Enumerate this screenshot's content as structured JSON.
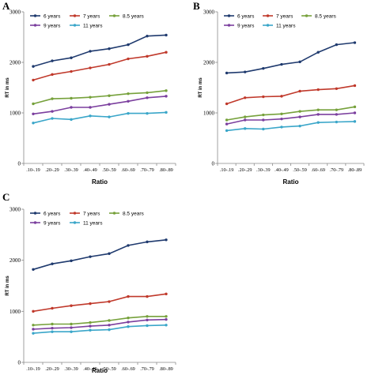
{
  "chart_data": [
    {
      "panel": "A",
      "type": "line",
      "categories": [
        ".10-.19",
        ".20-.29",
        ".30-.39",
        ".40-.49",
        ".50-.59",
        ".60-.69",
        ".70-.79",
        ".80-.89"
      ],
      "ytick_labels": [
        "0",
        "1000",
        "2000",
        "3000"
      ],
      "ylim": [
        0,
        3000
      ],
      "xlabel": "Ratio",
      "ylabel": "RT in ms",
      "legend": "top-left",
      "grid": false,
      "series": [
        {
          "name": "6 years",
          "color": "#1f3a6e",
          "values": [
            1920,
            2030,
            2090,
            2220,
            2270,
            2350,
            2520,
            2540
          ]
        },
        {
          "name": "7 years",
          "color": "#c0392b",
          "values": [
            1650,
            1760,
            1820,
            1890,
            1960,
            2070,
            2120,
            2200
          ]
        },
        {
          "name": "8.5 years",
          "color": "#76a13b",
          "values": [
            1180,
            1280,
            1290,
            1310,
            1340,
            1380,
            1400,
            1440
          ]
        },
        {
          "name": "9 years",
          "color": "#7b3f9e",
          "values": [
            980,
            1030,
            1110,
            1110,
            1170,
            1230,
            1300,
            1330
          ]
        },
        {
          "name": "11 years",
          "color": "#3aa6c9",
          "values": [
            800,
            890,
            870,
            940,
            920,
            990,
            990,
            1010
          ]
        }
      ]
    },
    {
      "panel": "B",
      "type": "line",
      "categories": [
        ".10-.19",
        ".20-.29",
        ".30-.39",
        ".40-.49",
        ".50-.59",
        ".60-.69",
        ".70-.79",
        ".80-.89"
      ],
      "ytick_labels": [
        "0",
        "1000",
        "2000",
        "3000"
      ],
      "ylim": [
        0,
        3000
      ],
      "xlabel": "Ratio",
      "ylabel": "RT in ms",
      "legend": "top-left",
      "grid": false,
      "series": [
        {
          "name": "6 years",
          "color": "#1f3a6e",
          "values": [
            1790,
            1810,
            1880,
            1960,
            2010,
            2200,
            2350,
            2390
          ]
        },
        {
          "name": "7 years",
          "color": "#c0392b",
          "values": [
            1180,
            1300,
            1320,
            1330,
            1430,
            1460,
            1480,
            1540
          ]
        },
        {
          "name": "8.5 years",
          "color": "#76a13b",
          "values": [
            860,
            920,
            960,
            980,
            1030,
            1060,
            1060,
            1120
          ]
        },
        {
          "name": "9 years",
          "color": "#7b3f9e",
          "values": [
            780,
            860,
            860,
            880,
            920,
            970,
            970,
            1000
          ]
        },
        {
          "name": "11 years",
          "color": "#3aa6c9",
          "values": [
            650,
            690,
            680,
            720,
            740,
            810,
            820,
            830
          ]
        }
      ]
    },
    {
      "panel": "C",
      "type": "line",
      "categories": [
        ".10-.19",
        ".20-.29",
        ".30-.39",
        ".40-.49",
        ".50-.59",
        ".60-.69",
        ".70-.79",
        ".80-.89"
      ],
      "ytick_labels": [
        "0",
        "1000",
        "2000",
        "3000"
      ],
      "ylim": [
        0,
        3000
      ],
      "xlabel": "Ratio",
      "ylabel": "RT in ms",
      "legend": "top-left",
      "grid": false,
      "series": [
        {
          "name": "6 years",
          "color": "#1f3a6e",
          "values": [
            1820,
            1930,
            1990,
            2070,
            2130,
            2290,
            2360,
            2400
          ]
        },
        {
          "name": "7 years",
          "color": "#c0392b",
          "values": [
            1000,
            1060,
            1110,
            1150,
            1190,
            1290,
            1290,
            1340
          ]
        },
        {
          "name": "8.5 years",
          "color": "#76a13b",
          "values": [
            730,
            750,
            750,
            780,
            820,
            870,
            900,
            900
          ]
        },
        {
          "name": "9 years",
          "color": "#7b3f9e",
          "values": [
            650,
            670,
            680,
            710,
            730,
            790,
            830,
            840
          ]
        },
        {
          "name": "11 years",
          "color": "#3aa6c9",
          "values": [
            570,
            600,
            600,
            630,
            640,
            700,
            720,
            730
          ]
        }
      ]
    }
  ]
}
